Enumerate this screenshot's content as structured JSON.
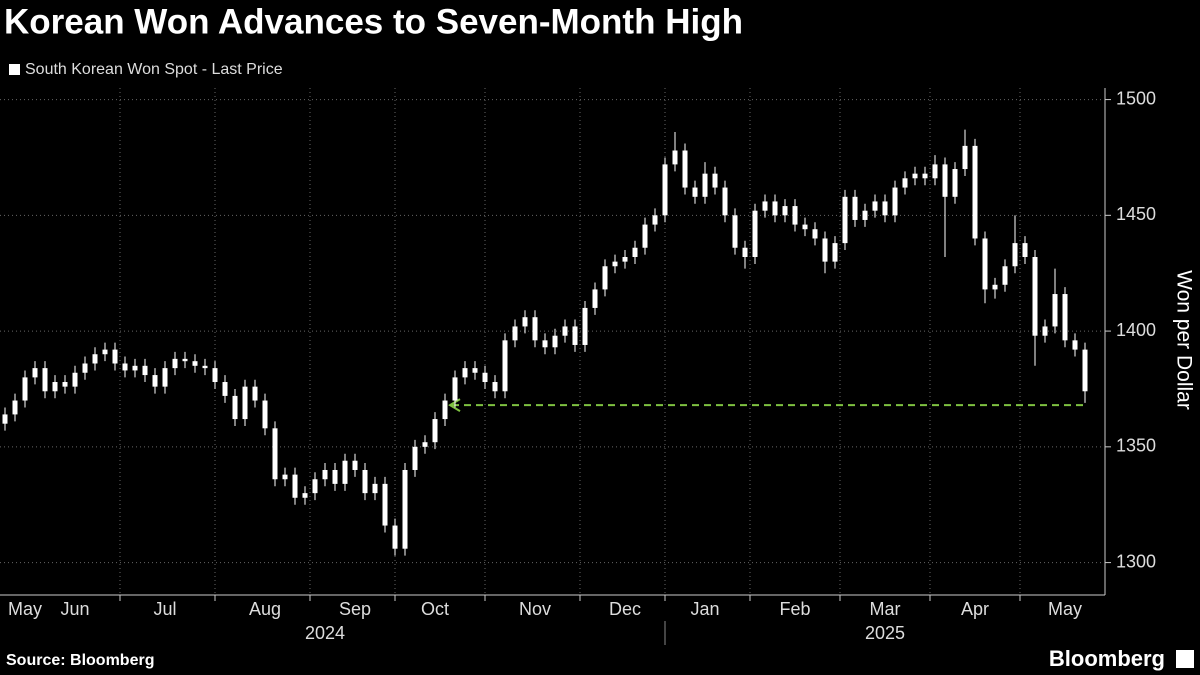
{
  "chart_data": {
    "type": "candlestick",
    "title": "Korean Won Advances to Seven-Month High",
    "source": "Source: Bloomberg",
    "brand": "Bloomberg",
    "ylabel": "Won per Dollar",
    "ylim": [
      1286,
      1505
    ],
    "yticks": [
      1300,
      1350,
      1400,
      1450,
      1500
    ],
    "grid": true,
    "categories": [
      null,
      null,
      "May",
      null,
      null,
      null,
      null,
      "Jun",
      null,
      null,
      null,
      null,
      null,
      null,
      null,
      null,
      "Jul",
      null,
      null,
      null,
      null,
      null,
      null,
      null,
      null,
      null,
      "Aug",
      null,
      null,
      null,
      null,
      null,
      null,
      null,
      null,
      "Sep",
      null,
      null,
      null,
      null,
      null,
      null,
      null,
      "Oct",
      null,
      null,
      null,
      null,
      null,
      null,
      null,
      null,
      null,
      "Nov",
      null,
      null,
      null,
      null,
      null,
      null,
      null,
      null,
      "Dec",
      null,
      null,
      null,
      null,
      null,
      null,
      null,
      "Jan",
      null,
      null,
      null,
      null,
      null,
      null,
      null,
      null,
      "Feb",
      null,
      null,
      null,
      null,
      null,
      null,
      null,
      null,
      "Mar",
      null,
      null,
      null,
      null,
      null,
      null,
      null,
      null,
      "Apr",
      null,
      null,
      null,
      null,
      null,
      null,
      null,
      null,
      "May",
      null,
      null
    ],
    "year_labels": [
      "2024",
      "2025"
    ],
    "series": [
      {
        "name": "South Korean Won Spot - Last Price",
        "color": "#ffffff",
        "open": [
          1360,
          1364,
          1370,
          1380,
          1384,
          1374,
          1378,
          1376,
          1382,
          1386,
          1390,
          1392,
          1386,
          1383,
          1385,
          1381,
          1376,
          1384,
          1388,
          1387,
          1385,
          1384,
          1378,
          1372,
          1362,
          1376,
          1370,
          1358,
          1336,
          1338,
          1328,
          1330,
          1336,
          1340,
          1334,
          1344,
          1340,
          1330,
          1334,
          1316,
          1306,
          1340,
          1350,
          1352,
          1362,
          1370,
          1380,
          1384,
          1382,
          1378,
          1374,
          1396,
          1402,
          1406,
          1396,
          1393,
          1398,
          1402,
          1394,
          1410,
          1418,
          1428,
          1430,
          1432,
          1436,
          1446,
          1450,
          1472,
          1478,
          1462,
          1458,
          1468,
          1462,
          1450,
          1436,
          1432,
          1452,
          1456,
          1450,
          1454,
          1446,
          1444,
          1440,
          1430,
          1438,
          1458,
          1448,
          1452,
          1456,
          1450,
          1462,
          1466,
          1468,
          1466,
          1472,
          1458,
          1470,
          1480,
          1440,
          1418,
          1420,
          1428,
          1438,
          1432,
          1398,
          1402,
          1416,
          1396,
          1392
        ],
        "high": [
          1367,
          1373,
          1383,
          1387,
          1387,
          1381,
          1381,
          1385,
          1389,
          1393,
          1395,
          1395,
          1389,
          1388,
          1388,
          1384,
          1387,
          1391,
          1391,
          1390,
          1388,
          1387,
          1381,
          1375,
          1379,
          1379,
          1373,
          1361,
          1341,
          1341,
          1333,
          1339,
          1343,
          1343,
          1347,
          1347,
          1343,
          1337,
          1337,
          1319,
          1343,
          1353,
          1355,
          1365,
          1373,
          1383,
          1387,
          1387,
          1385,
          1381,
          1399,
          1405,
          1409,
          1409,
          1399,
          1401,
          1405,
          1405,
          1413,
          1421,
          1431,
          1433,
          1435,
          1439,
          1449,
          1453,
          1475,
          1486,
          1481,
          1465,
          1473,
          1471,
          1465,
          1453,
          1439,
          1455,
          1459,
          1459,
          1457,
          1457,
          1449,
          1447,
          1443,
          1441,
          1461,
          1461,
          1455,
          1459,
          1459,
          1465,
          1469,
          1471,
          1471,
          1476,
          1475,
          1473,
          1487,
          1483,
          1443,
          1423,
          1431,
          1450,
          1441,
          1435,
          1405,
          1427,
          1419,
          1399,
          1395
        ],
        "low": [
          1357,
          1361,
          1367,
          1377,
          1371,
          1371,
          1373,
          1373,
          1379,
          1383,
          1387,
          1383,
          1380,
          1380,
          1378,
          1373,
          1373,
          1381,
          1384,
          1382,
          1381,
          1375,
          1369,
          1359,
          1359,
          1367,
          1355,
          1333,
          1333,
          1325,
          1325,
          1327,
          1333,
          1331,
          1331,
          1337,
          1327,
          1327,
          1313,
          1303,
          1303,
          1337,
          1347,
          1349,
          1359,
          1367,
          1377,
          1379,
          1375,
          1371,
          1371,
          1393,
          1399,
          1393,
          1390,
          1390,
          1395,
          1391,
          1391,
          1407,
          1415,
          1425,
          1427,
          1429,
          1433,
          1443,
          1447,
          1469,
          1459,
          1455,
          1455,
          1459,
          1447,
          1433,
          1427,
          1429,
          1449,
          1447,
          1447,
          1443,
          1441,
          1437,
          1425,
          1427,
          1435,
          1445,
          1445,
          1449,
          1447,
          1447,
          1459,
          1463,
          1463,
          1463,
          1432,
          1455,
          1467,
          1437,
          1412,
          1414,
          1417,
          1425,
          1429,
          1385,
          1395,
          1399,
          1393,
          1389,
          1369
        ],
        "close": [
          1364,
          1370,
          1380,
          1384,
          1374,
          1378,
          1376,
          1382,
          1386,
          1390,
          1392,
          1386,
          1383,
          1385,
          1381,
          1376,
          1384,
          1388,
          1387,
          1385,
          1384,
          1378,
          1372,
          1362,
          1376,
          1370,
          1358,
          1336,
          1338,
          1328,
          1330,
          1336,
          1340,
          1334,
          1344,
          1340,
          1330,
          1334,
          1316,
          1306,
          1340,
          1350,
          1352,
          1362,
          1370,
          1380,
          1384,
          1382,
          1378,
          1374,
          1396,
          1402,
          1406,
          1396,
          1393,
          1398,
          1402,
          1394,
          1410,
          1418,
          1428,
          1430,
          1432,
          1436,
          1446,
          1450,
          1472,
          1478,
          1462,
          1458,
          1468,
          1462,
          1450,
          1436,
          1432,
          1452,
          1456,
          1450,
          1454,
          1446,
          1444,
          1440,
          1430,
          1438,
          1458,
          1448,
          1452,
          1456,
          1450,
          1462,
          1466,
          1468,
          1466,
          1472,
          1458,
          1470,
          1480,
          1440,
          1418,
          1420,
          1428,
          1438,
          1432,
          1398,
          1402,
          1416,
          1396,
          1392,
          1374
        ]
      }
    ],
    "reference_line": {
      "value": 1368,
      "color": "#7fc241"
    }
  }
}
